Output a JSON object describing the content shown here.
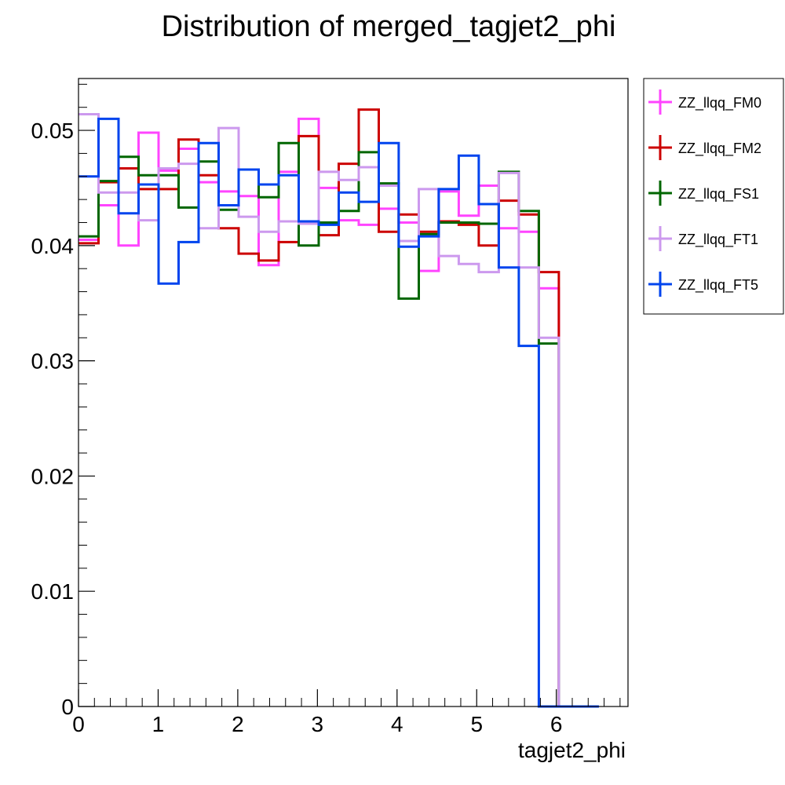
{
  "chart_data": {
    "type": "step-histogram",
    "title": "Distribution of merged_tagjet2_phi",
    "xlabel": "tagjet2_phi",
    "ylabel": "",
    "xlim": [
      0,
      6.9
    ],
    "ylim": [
      0,
      0.0545
    ],
    "x_ticks": [
      0,
      1,
      2,
      3,
      4,
      5,
      6
    ],
    "x_tick_labels": [
      "0",
      "1",
      "2",
      "3",
      "4",
      "5",
      "6"
    ],
    "y_ticks": [
      0,
      0.01,
      0.02,
      0.03,
      0.04,
      0.05
    ],
    "y_tick_labels": [
      "0",
      "0.01",
      "0.02",
      "0.03",
      "0.04",
      "0.05"
    ],
    "bin_edges": [
      0,
      0.2513,
      0.5027,
      0.754,
      1.0053,
      1.2566,
      1.508,
      1.7593,
      2.0106,
      2.2619,
      2.5133,
      2.7646,
      3.0159,
      3.2673,
      3.5186,
      3.7699,
      4.0212,
      4.2726,
      4.5239,
      4.7752,
      5.0265,
      5.2779,
      5.5292,
      5.7805,
      6.0319,
      6.2832,
      6.5345,
      6.9
    ],
    "legend_position": "right, outside plot",
    "grid": false,
    "series": [
      {
        "name": "ZZ_llqq_FM0",
        "color": "#ff44ff",
        "values": [
          0.0405,
          0.0435,
          0.04,
          0.0498,
          0.0465,
          0.0484,
          0.0455,
          0.0447,
          0.0443,
          0.0383,
          0.0464,
          0.051,
          0.045,
          0.0422,
          0.0418,
          0.0432,
          0.042,
          0.0378,
          0.0447,
          0.0426,
          0.0452,
          0.0415,
          0.0412,
          0.0363,
          0,
          0
        ]
      },
      {
        "name": "ZZ_llqq_FM2",
        "color": "#cc0000",
        "values": [
          0.0402,
          0.0455,
          0.0467,
          0.0449,
          0.0449,
          0.0492,
          0.0461,
          0.0415,
          0.0393,
          0.0387,
          0.0403,
          0.0495,
          0.0409,
          0.0471,
          0.0518,
          0.0412,
          0.0427,
          0.0412,
          0.0421,
          0.0418,
          0.04,
          0.0439,
          0.0427,
          0.0377,
          0,
          0
        ]
      },
      {
        "name": "ZZ_llqq_FS1",
        "color": "#006600",
        "values": [
          0.0408,
          0.0456,
          0.0477,
          0.0461,
          0.0461,
          0.0433,
          0.0473,
          0.0431,
          0.0466,
          0.0442,
          0.0489,
          0.04,
          0.042,
          0.043,
          0.0481,
          0.0454,
          0.0354,
          0.041,
          0.042,
          0.042,
          0.0419,
          0.0464,
          0.043,
          0.0315,
          0,
          0
        ]
      },
      {
        "name": "ZZ_llqq_FT1",
        "color": "#cc99ee",
        "values": [
          0.0514,
          0.0446,
          0.0446,
          0.0422,
          0.0467,
          0.0471,
          0.0415,
          0.0502,
          0.0425,
          0.0412,
          0.0421,
          0.0419,
          0.0464,
          0.0457,
          0.0468,
          0.0452,
          0.0404,
          0.0449,
          0.0391,
          0.0384,
          0.0377,
          0.0463,
          0.0381,
          0.032,
          0,
          0
        ]
      },
      {
        "name": "ZZ_llqq_FT5",
        "color": "#0044ee",
        "values": [
          0.046,
          0.051,
          0.0428,
          0.0453,
          0.0367,
          0.0403,
          0.0489,
          0.0435,
          0.0466,
          0.0453,
          0.0461,
          0.0421,
          0.0418,
          0.0446,
          0.0438,
          0.0489,
          0.0399,
          0.0408,
          0.0449,
          0.0478,
          0.0436,
          0.0381,
          0.0313,
          0,
          0,
          0
        ]
      }
    ]
  }
}
